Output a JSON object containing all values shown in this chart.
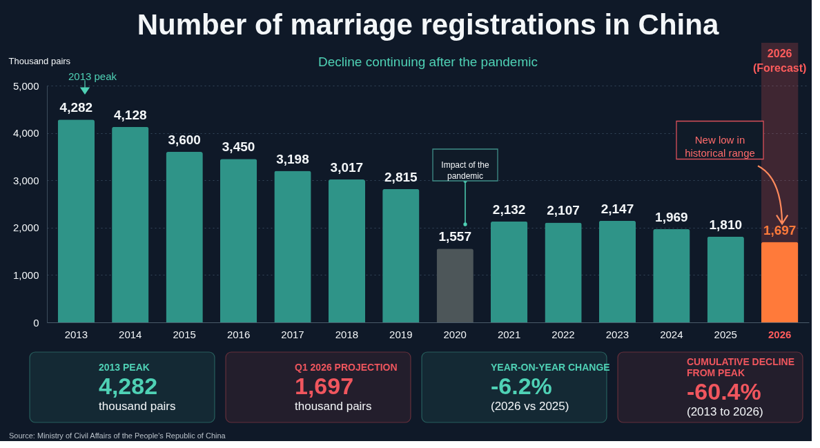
{
  "chart_data": [
    {
      "type": "bar",
      "title": "Number of marriage registrations in China",
      "subtitle": "Decline continuing after the pandemic",
      "ylabel": "Thousand pairs",
      "categories": [
        "2013",
        "2014",
        "2015",
        "2016",
        "2017",
        "2018",
        "2019",
        "2020",
        "2021",
        "2022",
        "2023",
        "2024",
        "2025",
        "2026"
      ],
      "values": [
        4282,
        4128,
        3600,
        3450,
        3198,
        3017,
        2815,
        1557,
        2132,
        2107,
        2147,
        1969,
        1810,
        1697
      ],
      "value_labels": [
        "4,282",
        "4,128",
        "3,600",
        "3,450",
        "3,198",
        "3,017",
        "2,815",
        "1,557",
        "2,132",
        "2,107",
        "2,147",
        "1,969",
        "1,810",
        "1,697"
      ],
      "colors": [
        "#2f9488",
        "#2f9488",
        "#2f9488",
        "#2f9488",
        "#2f9488",
        "#2f9488",
        "#2f9488",
        "#4d5659",
        "#2f9488",
        "#2f9488",
        "#2f9488",
        "#2f9488",
        "#2f9488",
        "#ff7a3a"
      ],
      "ylim": [
        0,
        5000
      ],
      "yticks": [
        0,
        {
          "value": 1000,
          "label": "1,000"
        },
        {
          "value": 2000,
          "label": "2,000"
        },
        {
          "value": 3000,
          "label": "3,000"
        },
        {
          "value": 4000,
          "label": "4,000"
        },
        {
          "value": 5000,
          "label": "5,000"
        }
      ],
      "grid": "y",
      "bands": [
        {
          "axis": "x",
          "from": "2026",
          "to": "2026",
          "label": "2026 (Forecast)",
          "color": "#ff5c5c"
        }
      ],
      "annotations": [
        "2013 peak",
        "Impact of the pandemic",
        "New low in historical range",
        "Source: Ministry of Civil Affairs of the People's Republic of China"
      ]
    },
    {
      "type": "other",
      "annotations": [
        "2013 PEAK\n4,282\nthousand pairs",
        "Q1 2026 PROJECTION\n1,697\nthousand pairs",
        "YEAR-ON-YEAR CHANGE\n-6.2%\n(2026 vs 2025)",
        "CUMULATIVE DECLINE\nFROM PEAK\n-60.4%\n(2013 to 2026)"
      ],
      "colors": [
        "#4fd1b5",
        "#f0565e",
        "#4fd1b5",
        "#f0565e"
      ]
    }
  ]
}
